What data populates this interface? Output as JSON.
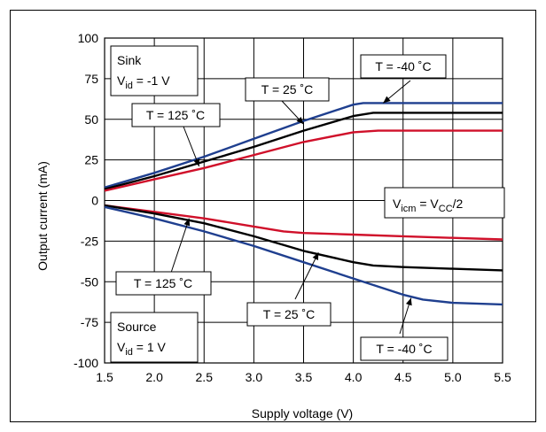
{
  "chart_data": {
    "type": "line",
    "title": "",
    "xlabel": "Supply voltage (V)",
    "ylabel": "Output current (mA)",
    "xlim": [
      1.5,
      5.5
    ],
    "ylim": [
      -100,
      100
    ],
    "xticks": [
      "1.5",
      "2.0",
      "2.5",
      "3.0",
      "3.5",
      "4.0",
      "4.5",
      "5.0",
      "5.5"
    ],
    "yticks": [
      "100",
      "75",
      "50",
      "25",
      "0",
      "-25",
      "-50",
      "-75",
      "-100"
    ],
    "grid": true,
    "series": [
      {
        "name": "Sink T = -40 °C",
        "color": "#1f3f8f",
        "x": [
          1.5,
          2.0,
          2.5,
          3.0,
          3.5,
          4.0,
          4.1,
          4.5,
          5.0,
          5.5
        ],
        "y": [
          8,
          17,
          27,
          38,
          49,
          59,
          60,
          60,
          60,
          60
        ]
      },
      {
        "name": "Sink T = 25 °C",
        "color": "#000000",
        "x": [
          1.5,
          2.0,
          2.5,
          3.0,
          3.5,
          4.0,
          4.2,
          4.5,
          5.0,
          5.5
        ],
        "y": [
          7,
          15,
          24,
          33,
          43,
          52,
          54,
          54,
          54,
          54
        ]
      },
      {
        "name": "Sink T = 125 °C",
        "color": "#d0102a",
        "x": [
          1.5,
          2.0,
          2.5,
          3.0,
          3.5,
          4.0,
          4.25,
          4.5,
          5.0,
          5.5
        ],
        "y": [
          6,
          13,
          20,
          28,
          36,
          42,
          43,
          43,
          43,
          43
        ]
      },
      {
        "name": "Source T = 125 °C",
        "color": "#d0102a",
        "x": [
          1.5,
          2.0,
          2.5,
          3.0,
          3.3,
          3.5,
          4.0,
          4.5,
          5.0,
          5.5
        ],
        "y": [
          -3,
          -7,
          -11,
          -16,
          -19,
          -20,
          -21,
          -22,
          -23,
          -24
        ]
      },
      {
        "name": "Source T = 25 °C",
        "color": "#000000",
        "x": [
          1.5,
          2.0,
          2.5,
          3.0,
          3.5,
          4.0,
          4.2,
          4.5,
          5.0,
          5.5
        ],
        "y": [
          -3,
          -8,
          -14,
          -22,
          -31,
          -38,
          -40,
          -41,
          -42,
          -43
        ]
      },
      {
        "name": "Source T = -40 °C",
        "color": "#1f3f8f",
        "x": [
          1.5,
          2.0,
          2.5,
          3.0,
          3.5,
          4.0,
          4.5,
          4.7,
          5.0,
          5.5
        ],
        "y": [
          -4,
          -11,
          -19,
          -28,
          -38,
          -48,
          -58,
          -61,
          -63,
          -64
        ]
      }
    ],
    "annotations": {
      "sink_line1": "Sink",
      "sink_vid_main": "V",
      "sink_vid_sub": "id",
      "sink_vid_value": " = -1 V",
      "source_line1": "Source",
      "source_vid_main": "V",
      "source_vid_sub": "id",
      "source_vid_value": " = 1 V",
      "vicm_main": "V",
      "vicm_sub": "icm",
      "vicm_eq": " = V",
      "vicm_sub2": "CC",
      "vicm_tail": "/2",
      "t_sink_m40": "T = -40 ˚C",
      "t_sink_25": "T = 25 ˚C",
      "t_sink_125": "T = 125 ˚C",
      "t_src_125": "T = 125 ˚C",
      "t_src_25": "T = 25 ˚C",
      "t_src_m40": "T = -40 ˚C"
    }
  }
}
